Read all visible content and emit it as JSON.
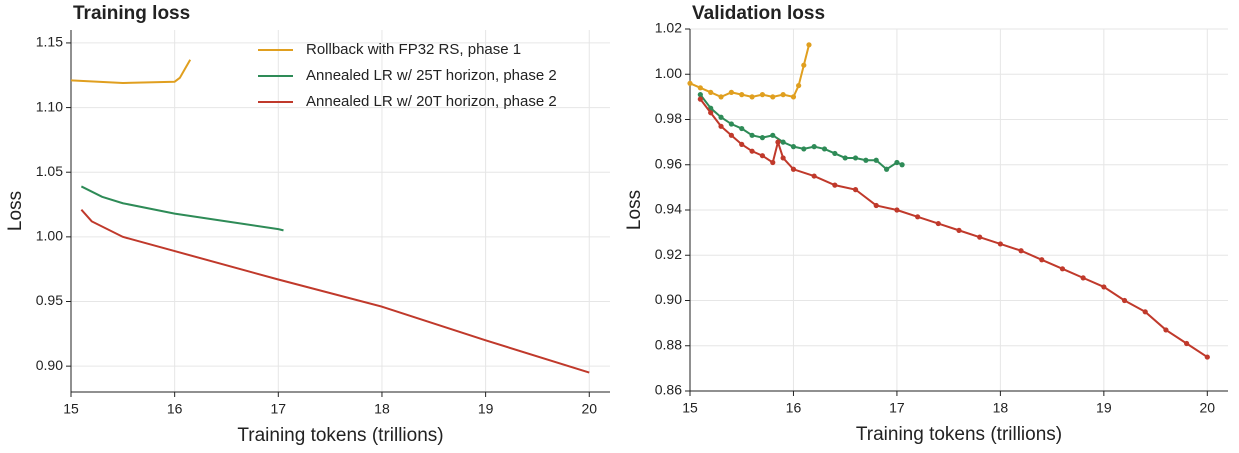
{
  "chart_data": [
    {
      "type": "line",
      "title": "Training loss",
      "xlabel": "Training tokens (trillions)",
      "ylabel": "Loss",
      "xlim": [
        15,
        20.2
      ],
      "xticks": [
        15,
        16,
        17,
        18,
        19,
        20
      ],
      "ylim": [
        0.88,
        1.16
      ],
      "yticks": [
        {
          "value": 0.9,
          "label": "0.90"
        },
        0.95,
        {
          "value": 1.0,
          "label": "1.00"
        },
        1.05,
        {
          "value": 1.1,
          "label": "1.10"
        },
        1.15
      ],
      "grid": true,
      "legend": "upper right",
      "markers": false,
      "series": [
        {
          "name": "Rollback with FP32 RS, phase 1",
          "color": "#e09f1f",
          "x": [
            15.0,
            15.5,
            16.0,
            16.05,
            16.1,
            16.15
          ],
          "values": [
            1.121,
            1.119,
            1.12,
            1.123,
            1.13,
            1.137
          ]
        },
        {
          "name": "Annealed LR w/ 25T horizon, phase 2",
          "color": "#2e8b57",
          "x": [
            15.1,
            15.3,
            15.5,
            16.0,
            16.5,
            17.0,
            17.05
          ],
          "values": [
            1.039,
            1.031,
            1.026,
            1.018,
            1.012,
            1.006,
            1.005
          ]
        },
        {
          "name": "Annealed LR w/ 20T horizon, phase 2",
          "color": "#c0392b",
          "x": [
            15.1,
            15.2,
            15.5,
            16.0,
            17.0,
            18.0,
            19.0,
            20.0
          ],
          "values": [
            1.021,
            1.012,
            1.0,
            0.989,
            0.967,
            0.946,
            0.92,
            0.895
          ]
        }
      ]
    },
    {
      "type": "line",
      "title": "Validation loss",
      "xlabel": "Training tokens (trillions)",
      "ylabel": "Loss",
      "xlim": [
        15,
        20.2
      ],
      "xticks": [
        15,
        16,
        17,
        18,
        19,
        20
      ],
      "ylim": [
        0.86,
        1.02
      ],
      "yticks": [
        0.86,
        0.88,
        {
          "value": 0.9,
          "label": "0.90"
        },
        0.92,
        0.94,
        0.96,
        0.98,
        {
          "value": 1.0,
          "label": "1.00"
        },
        1.02
      ],
      "grid": true,
      "markers": true,
      "series": [
        {
          "color": "#e09f1f",
          "x": [
            15.0,
            15.1,
            15.2,
            15.3,
            15.4,
            15.5,
            15.6,
            15.7,
            15.8,
            15.9,
            16.0,
            16.05,
            16.1,
            16.15
          ],
          "values": [
            0.996,
            0.994,
            0.992,
            0.99,
            0.992,
            0.991,
            0.99,
            0.991,
            0.99,
            0.991,
            0.99,
            0.995,
            1.004,
            1.013
          ]
        },
        {
          "color": "#2e8b57",
          "x": [
            15.1,
            15.2,
            15.3,
            15.4,
            15.5,
            15.6,
            15.7,
            15.8,
            15.9,
            16.0,
            16.1,
            16.2,
            16.3,
            16.4,
            16.5,
            16.6,
            16.7,
            16.8,
            16.9,
            17.0,
            17.05
          ],
          "values": [
            0.991,
            0.985,
            0.981,
            0.978,
            0.976,
            0.973,
            0.972,
            0.973,
            0.97,
            0.968,
            0.967,
            0.968,
            0.967,
            0.965,
            0.963,
            0.963,
            0.962,
            0.962,
            0.958,
            0.961,
            0.96
          ]
        },
        {
          "color": "#c0392b",
          "x": [
            15.1,
            15.2,
            15.3,
            15.4,
            15.5,
            15.6,
            15.7,
            15.8,
            15.85,
            15.9,
            16.0,
            16.2,
            16.4,
            16.6,
            16.8,
            17.0,
            17.2,
            17.4,
            17.6,
            17.8,
            18.0,
            18.2,
            18.4,
            18.6,
            18.8,
            19.0,
            19.2,
            19.4,
            19.6,
            19.8,
            20.0
          ],
          "values": [
            0.989,
            0.983,
            0.977,
            0.973,
            0.969,
            0.966,
            0.964,
            0.961,
            0.97,
            0.963,
            0.958,
            0.955,
            0.951,
            0.949,
            0.942,
            0.94,
            0.937,
            0.934,
            0.931,
            0.928,
            0.925,
            0.922,
            0.918,
            0.914,
            0.91,
            0.906,
            0.9,
            0.895,
            0.887,
            0.881,
            0.875
          ]
        }
      ]
    }
  ]
}
